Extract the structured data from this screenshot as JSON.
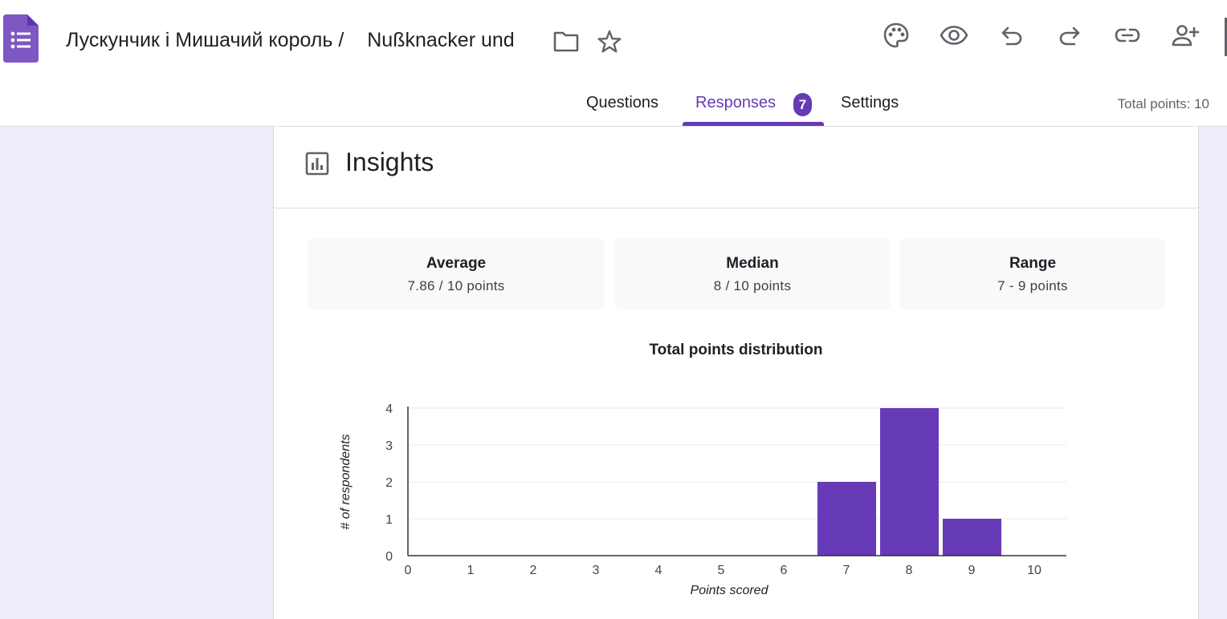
{
  "header": {
    "doc_title": "Лускунчик і Мишачий король /",
    "doc_title_rest": "Nußknacker und",
    "icons": [
      "forms-logo-icon",
      "folder-icon",
      "star-icon",
      "palette-icon",
      "preview-eye-icon",
      "undo-icon",
      "redo-icon",
      "link-icon",
      "add-collaborator-icon"
    ]
  },
  "tabs": [
    {
      "label": "Questions",
      "active": false
    },
    {
      "label": "Responses",
      "active": true,
      "badge": "7"
    },
    {
      "label": "Settings",
      "active": false
    }
  ],
  "total_points": "Total points: 10",
  "insights": {
    "title": "Insights",
    "stats": [
      {
        "label": "Average",
        "value": "7.86 / 10 points"
      },
      {
        "label": "Median",
        "value": "8 / 10 points"
      },
      {
        "label": "Range",
        "value": "7 - 9 points"
      }
    ]
  },
  "chart_data": {
    "type": "bar",
    "title": "Total points distribution",
    "xlabel": "Points scored",
    "ylabel": "# of respondents",
    "categories": [
      "0",
      "1",
      "2",
      "3",
      "4",
      "5",
      "6",
      "7",
      "8",
      "9",
      "10"
    ],
    "values": [
      0,
      0,
      0,
      0,
      0,
      0,
      0,
      2,
      4,
      1,
      0
    ],
    "yticks": [
      "0",
      "1",
      "2",
      "3",
      "4"
    ],
    "ylim": [
      0,
      4
    ],
    "grid": true,
    "bar_color": "#673ab7"
  },
  "colors": {
    "accent": "#673ab7",
    "side_background": "#f0ebf8"
  }
}
